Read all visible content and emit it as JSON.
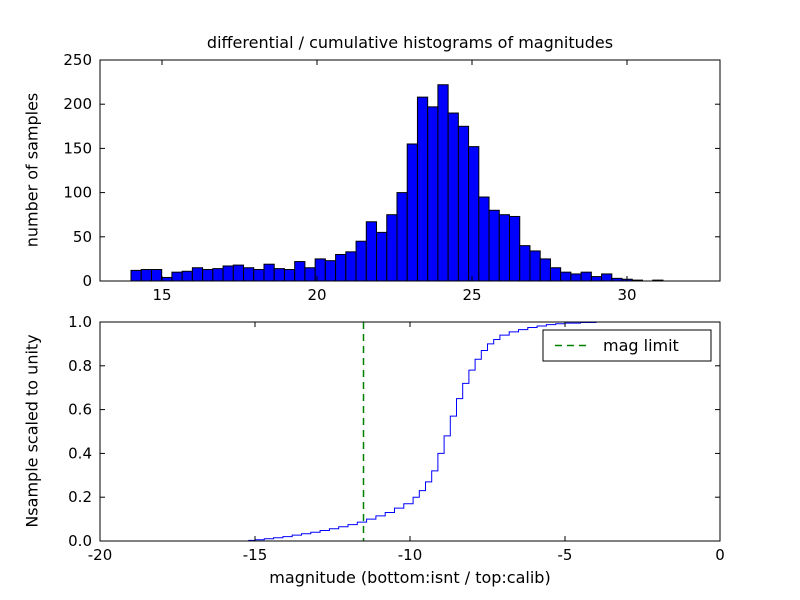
{
  "figure": {
    "background": "#ffffff"
  },
  "title": "differential / cumulative histograms of magnitudes",
  "chart_data": [
    {
      "type": "bar",
      "name": "differential-histogram-top-calib",
      "title": "differential / cumulative histograms of magnitudes",
      "xlabel": "",
      "ylabel": "number of samples",
      "xlim": [
        13,
        33
      ],
      "ylim": [
        0,
        250
      ],
      "xticks": [
        15,
        20,
        25,
        30
      ],
      "xtick_labels": [
        "15",
        "20",
        "25",
        "30"
      ],
      "yticks": [
        0,
        50,
        100,
        150,
        200,
        250
      ],
      "ytick_labels": [
        "0",
        "50",
        "100",
        "150",
        "200",
        "250"
      ],
      "grid": false,
      "bar_color": "#0000ff",
      "bar_edge_color": "#000000",
      "bin_start": 14.0,
      "bin_width": 0.33,
      "values": [
        12,
        13,
        13,
        4,
        10,
        11,
        15,
        13,
        14,
        17,
        18,
        15,
        13,
        19,
        14,
        13,
        22,
        15,
        25,
        23,
        30,
        33,
        45,
        67,
        55,
        75,
        100,
        155,
        208,
        197,
        222,
        190,
        175,
        152,
        95,
        80,
        75,
        73,
        40,
        34,
        25,
        15,
        10,
        8,
        10,
        5,
        8,
        3,
        2,
        1,
        0,
        1
      ]
    },
    {
      "type": "line",
      "name": "cumulative-histogram-bottom-isnt",
      "xlabel": "magnitude (bottom:isnt / top:calib)",
      "ylabel": "Nsample scaled to unity",
      "xlim": [
        -20,
        0
      ],
      "ylim": [
        0.0,
        1.0
      ],
      "xticks": [
        -20,
        -15,
        -10,
        -5,
        0
      ],
      "xtick_labels": [
        "-20",
        "-15",
        "-10",
        "-5",
        "0"
      ],
      "yticks": [
        0.0,
        0.2,
        0.4,
        0.6,
        0.8,
        1.0
      ],
      "ytick_labels": [
        "0.0",
        "0.2",
        "0.4",
        "0.6",
        "0.8",
        "1.0"
      ],
      "grid": false,
      "line_color": "#0000ff",
      "step": true,
      "points": [
        [
          -20,
          0
        ],
        [
          -15.4,
          0
        ],
        [
          -15.2,
          0.003
        ],
        [
          -15,
          0.006
        ],
        [
          -14.7,
          0.01
        ],
        [
          -14.4,
          0.015
        ],
        [
          -14.1,
          0.02
        ],
        [
          -13.8,
          0.027
        ],
        [
          -13.5,
          0.033
        ],
        [
          -13.2,
          0.04
        ],
        [
          -12.9,
          0.048
        ],
        [
          -12.6,
          0.056
        ],
        [
          -12.3,
          0.065
        ],
        [
          -12,
          0.075
        ],
        [
          -11.7,
          0.086
        ],
        [
          -11.4,
          0.1
        ],
        [
          -11.1,
          0.115
        ],
        [
          -10.8,
          0.13
        ],
        [
          -10.5,
          0.15
        ],
        [
          -10.2,
          0.17
        ],
        [
          -9.9,
          0.2
        ],
        [
          -9.7,
          0.23
        ],
        [
          -9.5,
          0.27
        ],
        [
          -9.3,
          0.32
        ],
        [
          -9.1,
          0.4
        ],
        [
          -8.9,
          0.48
        ],
        [
          -8.7,
          0.57
        ],
        [
          -8.5,
          0.65
        ],
        [
          -8.3,
          0.72
        ],
        [
          -8.1,
          0.78
        ],
        [
          -7.9,
          0.83
        ],
        [
          -7.7,
          0.87
        ],
        [
          -7.5,
          0.9
        ],
        [
          -7.3,
          0.92
        ],
        [
          -7.1,
          0.94
        ],
        [
          -6.8,
          0.955
        ],
        [
          -6.5,
          0.965
        ],
        [
          -6.2,
          0.975
        ],
        [
          -5.9,
          0.982
        ],
        [
          -5.6,
          0.988
        ],
        [
          -5.3,
          0.992
        ],
        [
          -5,
          0.995
        ],
        [
          -4.5,
          0.998
        ],
        [
          -4,
          1.0
        ],
        [
          0,
          1.0
        ]
      ],
      "mag_limit_line": {
        "x": -11.5,
        "color": "#008000",
        "style": "dashed",
        "label": "mag limit"
      },
      "legend": {
        "label": "mag limit",
        "color": "#008000",
        "position": "upper right"
      }
    }
  ]
}
